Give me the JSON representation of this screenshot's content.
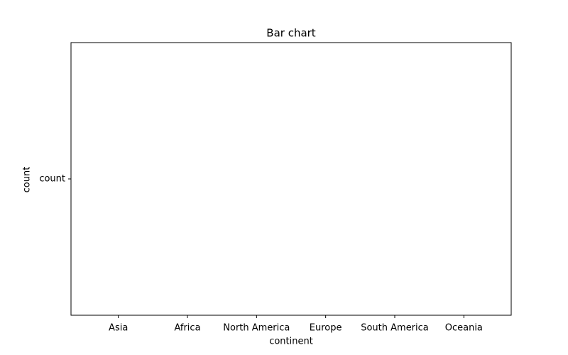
{
  "chart_data": {
    "type": "bar",
    "title": "Bar chart",
    "x_label": "continent",
    "y_label": "count",
    "categories": [
      "Asia",
      "Africa",
      "North America",
      "Europe",
      "South America",
      "Oceania"
    ],
    "y_categories": [
      "count"
    ]
  }
}
